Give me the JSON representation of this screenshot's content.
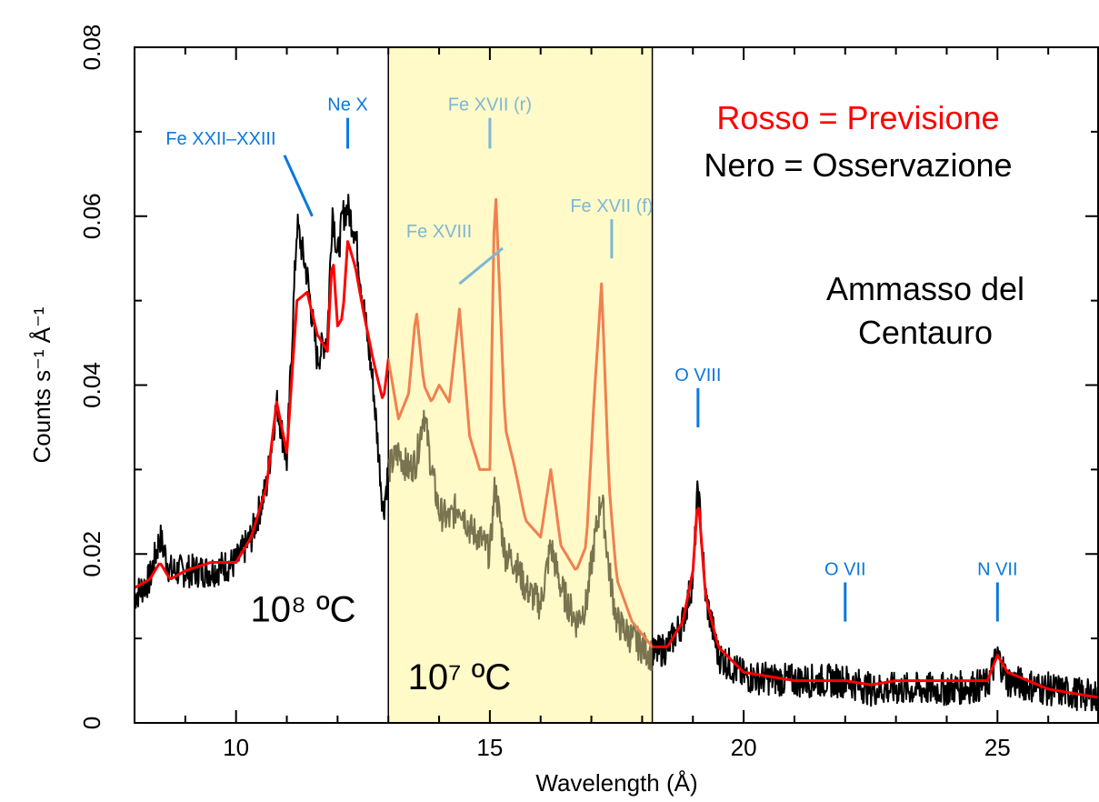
{
  "chart_data": {
    "type": "line",
    "title": "",
    "xlabel": "Wavelength (Å)",
    "ylabel": "Counts s⁻¹ Å⁻¹",
    "xlim": [
      8,
      27
    ],
    "ylim": [
      0,
      0.08
    ],
    "grid": false,
    "x_tick_labels": [
      "10",
      "15",
      "20",
      "25"
    ],
    "x_tick_values": [
      10,
      15,
      20,
      25
    ],
    "y_tick_labels": [
      "0",
      "0.02",
      "0.04",
      "0.06",
      "0.08"
    ],
    "y_tick_values": [
      0,
      0.02,
      0.04,
      0.06,
      0.08
    ],
    "highlight_band": {
      "x_range": [
        13,
        18.2
      ],
      "label": "10⁷ ºC",
      "color": "#fffac8"
    },
    "legend": [
      {
        "text": "Rosso = Previsione",
        "color": "#ff0000"
      },
      {
        "text": "Nero = Osservazione",
        "color": "#000000"
      }
    ],
    "object_label": [
      "Ammasso del",
      "Centauro"
    ],
    "temperature_labels": [
      {
        "text": "10⁸ ºC",
        "x": 11.0,
        "y": 0.012
      },
      {
        "text": "10⁷ ºC",
        "x": 14.1,
        "y": 0.004
      }
    ],
    "line_annotations": [
      {
        "text": "Fe XXII–XXIII",
        "label_x": 9.7,
        "label_y": 0.0685,
        "tip_x": 11.5,
        "tip_y": 0.06
      },
      {
        "text": "Ne X",
        "label_x": 12.2,
        "label_y": 0.0725,
        "tip_x": 12.2,
        "tip_y": 0.068
      },
      {
        "text": "Fe XVII (r)",
        "label_x": 15.0,
        "label_y": 0.0725,
        "tip_x": 15.0,
        "tip_y": 0.068
      },
      {
        "text": "Fe XVIII",
        "label_x": 14.0,
        "label_y": 0.0575,
        "tip_x": 14.4,
        "tip_y": 0.052
      },
      {
        "text": "Fe XVII (f)",
        "label_x": 17.4,
        "label_y": 0.0605,
        "tip_x": 17.4,
        "tip_y": 0.055
      },
      {
        "text": "O VIII",
        "label_x": 19.1,
        "label_y": 0.0405,
        "tip_x": 19.1,
        "tip_y": 0.035
      },
      {
        "text": "O VII",
        "label_x": 22.0,
        "label_y": 0.0175,
        "tip_x": 22.0,
        "tip_y": 0.012
      },
      {
        "text": "N VII",
        "label_x": 25.0,
        "label_y": 0.0175,
        "tip_x": 25.0,
        "tip_y": 0.012
      }
    ],
    "series": [
      {
        "role": "observation",
        "color": "#000000",
        "color_in_band": "#7a7350",
        "x": [
          8.0,
          8.3,
          8.5,
          8.7,
          9.0,
          9.5,
          10.0,
          10.3,
          10.6,
          10.8,
          11.0,
          11.2,
          11.4,
          11.6,
          11.8,
          11.9,
          12.0,
          12.1,
          12.2,
          12.35,
          12.5,
          12.7,
          12.9,
          13.0,
          13.2,
          13.4,
          13.55,
          13.7,
          13.85,
          14.0,
          14.2,
          14.4,
          14.6,
          14.8,
          15.0,
          15.1,
          15.3,
          15.5,
          15.7,
          16.0,
          16.2,
          16.4,
          16.7,
          16.9,
          17.05,
          17.2,
          17.35,
          17.5,
          17.8,
          18.2,
          18.5,
          18.8,
          19.0,
          19.1,
          19.25,
          19.5,
          20.0,
          21.0,
          22.0,
          22.5,
          23.0,
          24.0,
          24.8,
          25.0,
          25.2,
          26.0,
          27.0
        ],
        "y": [
          0.015,
          0.017,
          0.022,
          0.018,
          0.018,
          0.018,
          0.019,
          0.022,
          0.028,
          0.038,
          0.031,
          0.059,
          0.053,
          0.043,
          0.046,
          0.061,
          0.055,
          0.06,
          0.061,
          0.058,
          0.05,
          0.04,
          0.025,
          0.03,
          0.032,
          0.03,
          0.031,
          0.037,
          0.03,
          0.025,
          0.024,
          0.026,
          0.023,
          0.022,
          0.02,
          0.028,
          0.02,
          0.019,
          0.016,
          0.014,
          0.021,
          0.016,
          0.012,
          0.014,
          0.021,
          0.027,
          0.018,
          0.012,
          0.01,
          0.008,
          0.009,
          0.012,
          0.017,
          0.028,
          0.015,
          0.008,
          0.0055,
          0.005,
          0.005,
          0.004,
          0.004,
          0.004,
          0.0045,
          0.008,
          0.005,
          0.004,
          0.003
        ]
      },
      {
        "role": "prediction",
        "color": "#ff0000",
        "color_in_band": "#f08050",
        "x": [
          8.0,
          8.3,
          8.5,
          8.7,
          9.0,
          9.5,
          10.0,
          10.3,
          10.6,
          10.8,
          11.0,
          11.2,
          11.4,
          11.6,
          11.8,
          11.9,
          12.0,
          12.1,
          12.2,
          12.35,
          12.5,
          12.7,
          12.9,
          13.0,
          13.2,
          13.4,
          13.55,
          13.7,
          13.85,
          14.0,
          14.2,
          14.4,
          14.6,
          14.8,
          15.0,
          15.1,
          15.3,
          15.5,
          15.7,
          16.0,
          16.2,
          16.4,
          16.7,
          16.9,
          17.05,
          17.2,
          17.35,
          17.5,
          17.8,
          18.2,
          18.5,
          18.8,
          19.0,
          19.1,
          19.25,
          19.5,
          20.0,
          21.0,
          22.0,
          22.5,
          23.0,
          24.0,
          24.8,
          25.0,
          25.2,
          26.0,
          27.0
        ],
        "y": [
          0.016,
          0.017,
          0.019,
          0.017,
          0.018,
          0.019,
          0.019,
          0.022,
          0.028,
          0.038,
          0.032,
          0.05,
          0.051,
          0.046,
          0.044,
          0.056,
          0.047,
          0.048,
          0.057,
          0.054,
          0.049,
          0.043,
          0.038,
          0.043,
          0.036,
          0.039,
          0.049,
          0.04,
          0.038,
          0.04,
          0.038,
          0.049,
          0.034,
          0.03,
          0.03,
          0.065,
          0.035,
          0.03,
          0.024,
          0.022,
          0.03,
          0.021,
          0.018,
          0.021,
          0.038,
          0.052,
          0.028,
          0.017,
          0.012,
          0.009,
          0.009,
          0.012,
          0.018,
          0.027,
          0.015,
          0.009,
          0.006,
          0.005,
          0.005,
          0.0045,
          0.005,
          0.005,
          0.005,
          0.008,
          0.006,
          0.004,
          0.003
        ]
      }
    ]
  }
}
